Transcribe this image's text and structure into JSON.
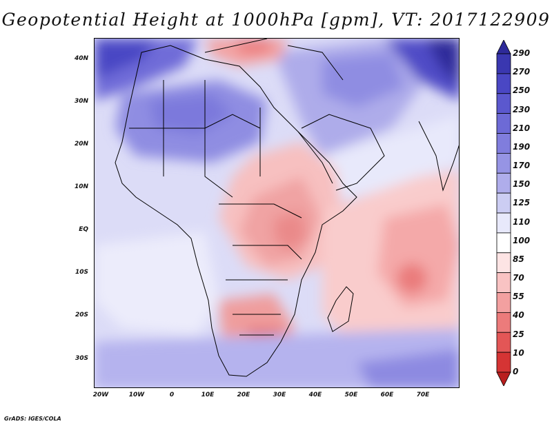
{
  "title": "Geopotential Height at 1000hPa [gpm], VT: 2017122909",
  "credit": "GrADS: IGES/COLA",
  "map": {
    "variable": "Geopotential Height",
    "level": "1000hPa",
    "units": "gpm",
    "valid_time": "2017122909",
    "lat_labels": [
      "40N",
      "30N",
      "20N",
      "10N",
      "EQ",
      "10S",
      "20S",
      "30S"
    ],
    "lon_labels": [
      "20W",
      "10W",
      "0",
      "10E",
      "20E",
      "30E",
      "40E",
      "50E",
      "60E",
      "70E"
    ]
  },
  "colorbar": {
    "labels": [
      "290",
      "270",
      "250",
      "230",
      "210",
      "190",
      "170",
      "150",
      "125",
      "110",
      "100",
      "85",
      "70",
      "55",
      "40",
      "25",
      "10",
      "0"
    ],
    "colors": [
      "#2e2a9a",
      "#3a37b0",
      "#4a47c4",
      "#5b58ce",
      "#6d6ad6",
      "#807ddd",
      "#9694e4",
      "#afadeb",
      "#cccdf3",
      "#e8e9fb",
      "#ffffff",
      "#fde4e4",
      "#f9c3c3",
      "#f3a0a0",
      "#ec7b7b",
      "#e35656",
      "#d53434",
      "#b91e1e"
    ]
  }
}
